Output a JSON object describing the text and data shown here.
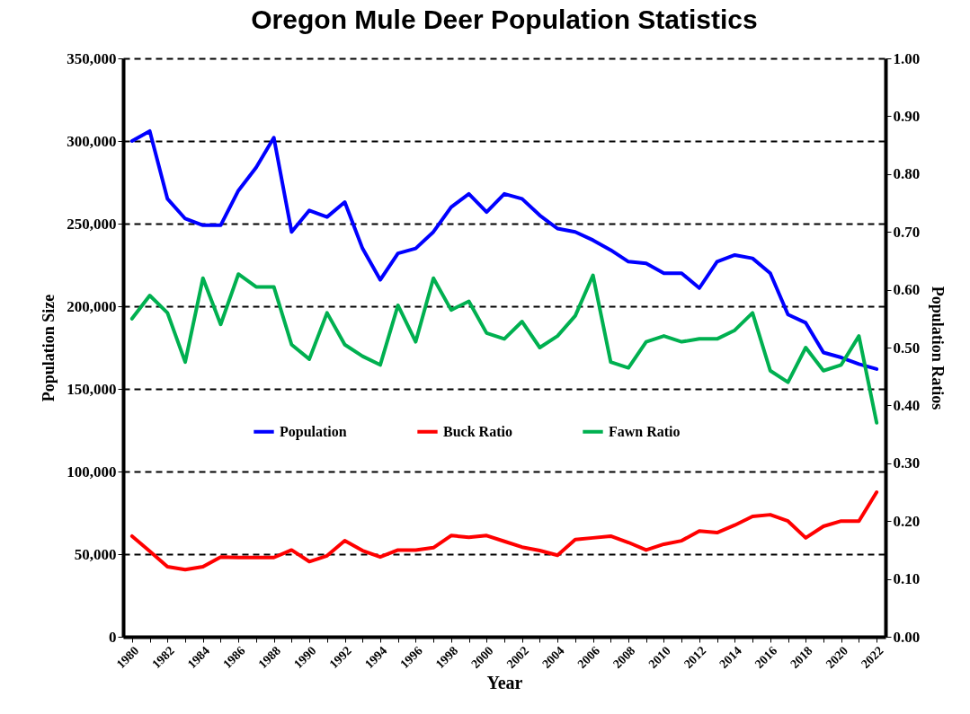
{
  "chart_data": {
    "type": "line",
    "title": "Oregon Mule Deer Population Statistics",
    "xlabel": "Year",
    "ylabel": "Population Size",
    "y2label": "Population Ratios",
    "categories": [
      "1980",
      null,
      "1982",
      null,
      "1984",
      null,
      "1986",
      null,
      "1988",
      null,
      "1990",
      null,
      "1992",
      null,
      "1994",
      null,
      "1996",
      null,
      "1998",
      null,
      "2000",
      null,
      "2002",
      null,
      "2004",
      null,
      "2006",
      null,
      "2008",
      null,
      "2010",
      null,
      "2012",
      null,
      "2014",
      null,
      "2016",
      null,
      "2018",
      null,
      "2020",
      null,
      "2022"
    ],
    "series": [
      {
        "name": "Population",
        "color": "#0000ff",
        "values": [
          300000,
          306000,
          265000,
          253000,
          249000,
          249000,
          270000,
          284000,
          302000,
          245000,
          258000,
          254000,
          263000,
          235000,
          216000,
          232000,
          235000,
          245000,
          260000,
          268000,
          257000,
          268000,
          265000,
          255000,
          247000,
          245000,
          240000,
          234000,
          227000,
          226000,
          220000,
          220000,
          211000,
          227000,
          231000,
          229000,
          220000,
          195000,
          190000,
          172000,
          169000,
          165000,
          162000
        ]
      },
      {
        "name": "Buck Ratio",
        "color": "#ff0000",
        "axis": "y2",
        "values": [
          0.174,
          0.148,
          0.121,
          0.116,
          0.121,
          0.138,
          0.137,
          0.137,
          0.137,
          0.15,
          0.13,
          0.14,
          0.166,
          0.149,
          0.138,
          0.15,
          0.15,
          0.154,
          0.175,
          0.172,
          0.175,
          0.165,
          0.155,
          0.149,
          0.141,
          0.168,
          0.171,
          0.174,
          0.163,
          0.15,
          0.16,
          0.166,
          0.183,
          0.18,
          0.193,
          0.208,
          0.211,
          0.2,
          0.171,
          0.191,
          0.2,
          0.2,
          0.25
        ]
      },
      {
        "name": "Fawn Ratio",
        "color": "#00b050",
        "axis": "y2",
        "values": [
          0.55,
          0.59,
          0.56,
          0.475,
          0.62,
          0.54,
          0.627,
          0.605,
          0.605,
          0.505,
          0.48,
          0.56,
          0.505,
          0.485,
          0.47,
          0.573,
          0.51,
          0.62,
          0.565,
          0.58,
          0.525,
          0.515,
          0.545,
          0.5,
          0.52,
          0.555,
          0.625,
          0.475,
          0.465,
          0.51,
          0.52,
          0.51,
          0.515,
          0.515,
          0.53,
          0.56,
          0.46,
          0.44,
          0.5,
          0.46,
          0.47,
          0.52,
          0.37
        ]
      }
    ],
    "ylim": [
      0,
      350000
    ],
    "yticks": [
      {
        "value": 0,
        "label": "0"
      },
      {
        "value": 50000,
        "label": "50,000"
      },
      {
        "value": 100000,
        "label": "100,000"
      },
      {
        "value": 150000,
        "label": "150,000"
      },
      {
        "value": 200000,
        "label": "200,000"
      },
      {
        "value": 250000,
        "label": "250,000"
      },
      {
        "value": 300000,
        "label": "300,000"
      },
      {
        "value": 350000,
        "label": "350,000"
      }
    ],
    "y2lim": [
      0,
      1
    ],
    "y2ticks": [
      {
        "value": 0,
        "label": "0.00"
      },
      {
        "value": 0.1,
        "label": "0.10"
      },
      {
        "value": 0.2,
        "label": "0.20"
      },
      {
        "value": 0.3,
        "label": "0.30"
      },
      {
        "value": 0.4,
        "label": "0.40"
      },
      {
        "value": 0.5,
        "label": "0.50"
      },
      {
        "value": 0.6,
        "label": "0.60"
      },
      {
        "value": 0.7,
        "label": "0.70"
      },
      {
        "value": 0.8,
        "label": "0.80"
      },
      {
        "value": 0.9,
        "label": "0.90"
      },
      {
        "value": 1,
        "label": "1.00"
      }
    ],
    "grid": "y",
    "legend": "center",
    "marker": "none",
    "line_style": "solid"
  }
}
